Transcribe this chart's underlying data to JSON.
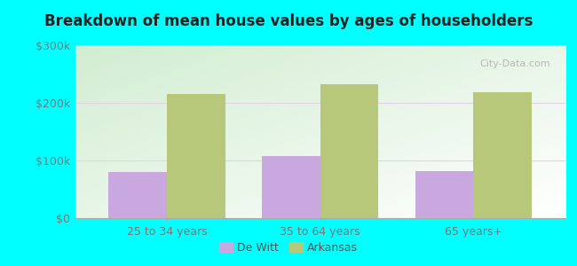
{
  "title": "Breakdown of mean house values by ages of householders",
  "categories": [
    "25 to 34 years",
    "35 to 64 years",
    "65 years+"
  ],
  "dewitt_values": [
    80000,
    107000,
    82000
  ],
  "arkansas_values": [
    215000,
    232000,
    218000
  ],
  "dewitt_color": "#c9a8e0",
  "arkansas_color": "#b8c87a",
  "ylim": [
    0,
    300000
  ],
  "yticks": [
    0,
    100000,
    200000,
    300000
  ],
  "ytick_labels": [
    "$0",
    "$100k",
    "$200k",
    "$300k"
  ],
  "background_color": "#00ffff",
  "legend_dewitt": "De Witt",
  "legend_arkansas": "Arkansas",
  "bar_width": 0.38
}
